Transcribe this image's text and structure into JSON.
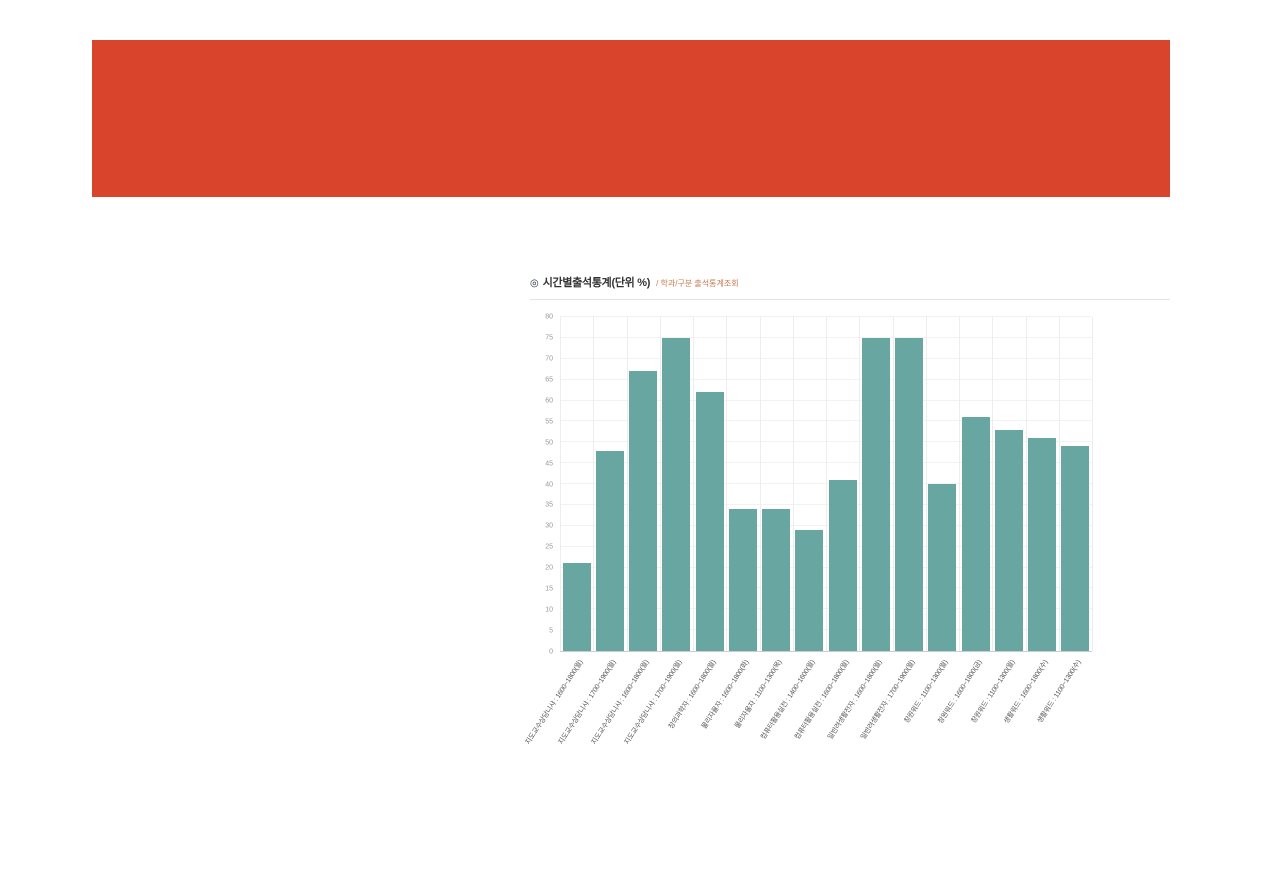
{
  "banner": {
    "color": "#d8452c"
  },
  "chart": {
    "title_icon": "◎",
    "title": "시간별출석통계(단위 %)",
    "subtitle": "/ 학과/구분 출석통계조회"
  },
  "chart_data": {
    "type": "bar",
    "title": "시간별출석통계(단위 %)",
    "categories": [
      "지도교수상담니샤 : 1600~1800(월)",
      "지도교수상담니샤 : 1700~1900(월)",
      "지도교수상담니샤 : 1600~1800(월)",
      "지도교수상담니샤 : 1700~1900(월)",
      "창의과학자 : 1600~1800(월)",
      "물리자율자 : 1600~1800(화)",
      "물리자율자 : 1100~1300(목)",
      "컴퓨터활용실전 : 1400~1600(월)",
      "컴퓨터활용실전 : 1600~1800(월)",
      "일반려생활전자 : 1600~1800(월)",
      "일반려생활전자 : 1700~1900(월)",
      "창원워드 : 1100~1300(월)",
      "창원워드 : 1600~1800(금)",
      "창원워드 : 1100~1300(월)",
      "생활워드 : 1600~1800(수)",
      "생활워드 : 1100~1300(수)"
    ],
    "values": [
      21,
      48,
      67,
      75,
      62,
      34,
      34,
      29,
      41,
      75,
      75,
      40,
      56,
      53,
      51,
      49
    ],
    "xlabel": "",
    "ylabel": "",
    "ylim": [
      0,
      80
    ],
    "ytick_step": 5,
    "bar_color": "#68a7a1",
    "grid": true,
    "legend": "none"
  }
}
